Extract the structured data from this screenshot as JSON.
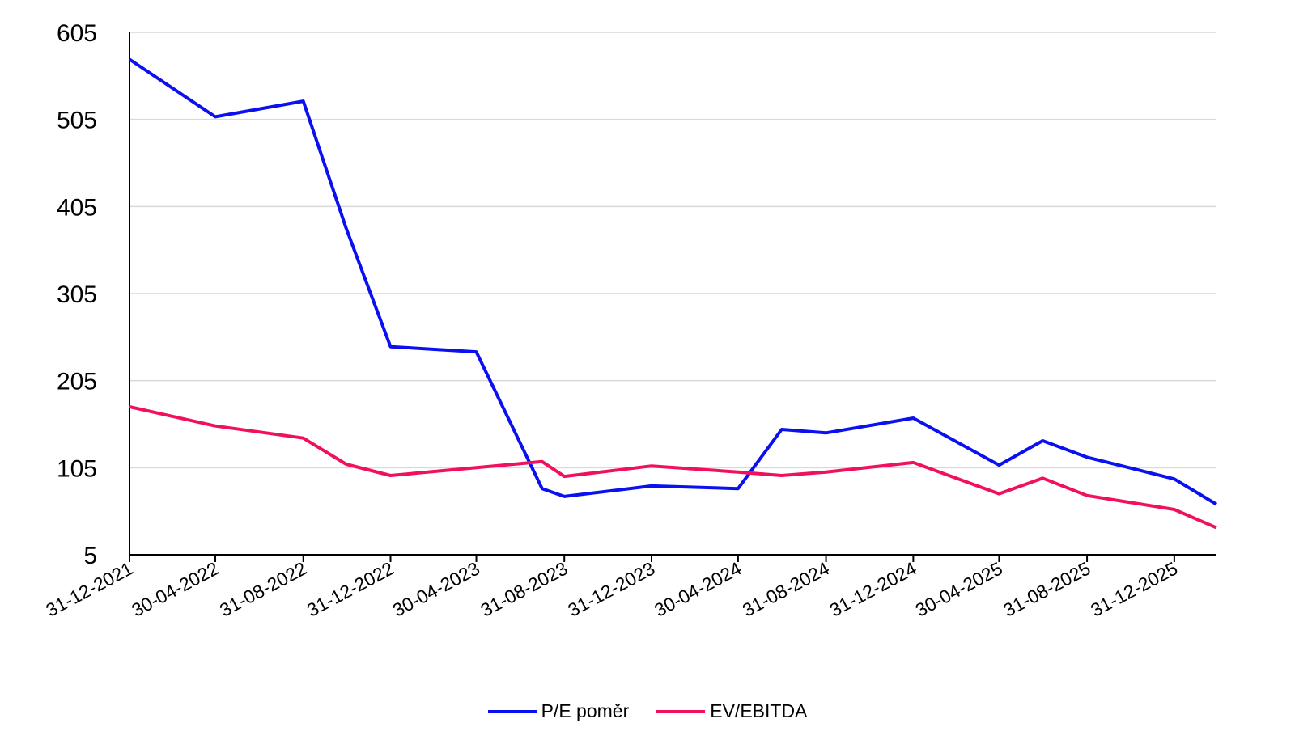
{
  "chart_data": {
    "type": "line",
    "title": "",
    "xlabel": "",
    "ylabel": "",
    "x": [
      "31-12-2021",
      "30-04-2022",
      "31-08-2022",
      "31-12-2022",
      "30-04-2023",
      "31-08-2023",
      "31-12-2023",
      "30-04-2024",
      "31-08-2024",
      "31-12-2024",
      "30-04-2025",
      "31-08-2025",
      "31-12-2025"
    ],
    "ylim": [
      5,
      605
    ],
    "yticks": [
      5,
      105,
      205,
      305,
      405,
      505,
      605
    ],
    "grid": true,
    "legend_position": "bottom",
    "series": [
      {
        "name": "P/E poměr",
        "color": "#0a10f0",
        "points": [
          {
            "date": "31-12-2021",
            "value": 574
          },
          {
            "date": "30-04-2022",
            "value": 508
          },
          {
            "date": "31-08-2022",
            "value": 526
          },
          {
            "date": "30-10-2022",
            "value": 380
          },
          {
            "date": "31-12-2022",
            "value": 244
          },
          {
            "date": "30-04-2023",
            "value": 238
          },
          {
            "date": "31-07-2023",
            "value": 81
          },
          {
            "date": "31-08-2023",
            "value": 72
          },
          {
            "date": "31-12-2023",
            "value": 84
          },
          {
            "date": "30-04-2024",
            "value": 81
          },
          {
            "date": "30-06-2024",
            "value": 149
          },
          {
            "date": "31-08-2024",
            "value": 145
          },
          {
            "date": "31-12-2024",
            "value": 162
          },
          {
            "date": "30-04-2025",
            "value": 108
          },
          {
            "date": "30-06-2025",
            "value": 136
          },
          {
            "date": "31-08-2025",
            "value": 117
          },
          {
            "date": "31-12-2025",
            "value": 92
          },
          {
            "date": "28-02-2026",
            "value": 63
          }
        ]
      },
      {
        "name": "EV/EBITDA",
        "color": "#f0105f",
        "points": [
          {
            "date": "31-12-2021",
            "value": 175
          },
          {
            "date": "30-04-2022",
            "value": 153
          },
          {
            "date": "31-08-2022",
            "value": 139
          },
          {
            "date": "30-10-2022",
            "value": 109
          },
          {
            "date": "31-12-2022",
            "value": 96
          },
          {
            "date": "30-04-2023",
            "value": 105
          },
          {
            "date": "31-07-2023",
            "value": 112
          },
          {
            "date": "31-08-2023",
            "value": 95
          },
          {
            "date": "31-12-2023",
            "value": 107
          },
          {
            "date": "30-04-2024",
            "value": 100
          },
          {
            "date": "30-06-2024",
            "value": 96
          },
          {
            "date": "31-08-2024",
            "value": 100
          },
          {
            "date": "31-12-2024",
            "value": 111
          },
          {
            "date": "30-04-2025",
            "value": 75
          },
          {
            "date": "30-06-2025",
            "value": 93
          },
          {
            "date": "31-08-2025",
            "value": 73
          },
          {
            "date": "31-12-2025",
            "value": 57
          },
          {
            "date": "28-02-2026",
            "value": 36
          }
        ]
      }
    ]
  }
}
